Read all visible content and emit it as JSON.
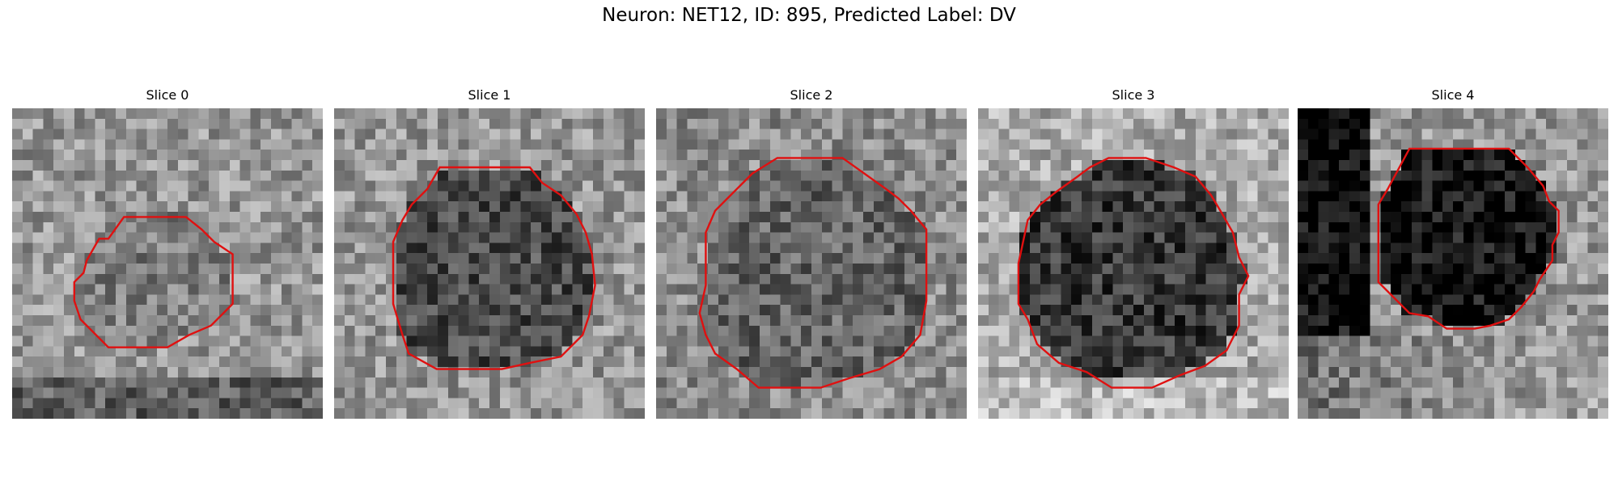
{
  "figure": {
    "title": "Neuron: NET12, ID: 895, Predicted Label: DV"
  },
  "panels": [
    {
      "title": "Slice 0",
      "contour_color": "#e01010",
      "contour": [
        [
          0.36,
          0.35
        ],
        [
          0.56,
          0.35
        ],
        [
          0.61,
          0.39
        ],
        [
          0.65,
          0.43
        ],
        [
          0.71,
          0.47
        ],
        [
          0.71,
          0.63
        ],
        [
          0.64,
          0.7
        ],
        [
          0.57,
          0.73
        ],
        [
          0.5,
          0.77
        ],
        [
          0.41,
          0.77
        ],
        [
          0.31,
          0.77
        ],
        [
          0.22,
          0.68
        ],
        [
          0.2,
          0.62
        ],
        [
          0.2,
          0.56
        ],
        [
          0.23,
          0.53
        ],
        [
          0.24,
          0.49
        ],
        [
          0.28,
          0.42
        ],
        [
          0.31,
          0.42
        ]
      ]
    },
    {
      "title": "Slice 1",
      "contour_color": "#e01010",
      "contour": [
        [
          0.34,
          0.19
        ],
        [
          0.63,
          0.19
        ],
        [
          0.67,
          0.24
        ],
        [
          0.73,
          0.28
        ],
        [
          0.78,
          0.34
        ],
        [
          0.81,
          0.4
        ],
        [
          0.83,
          0.47
        ],
        [
          0.84,
          0.57
        ],
        [
          0.82,
          0.67
        ],
        [
          0.8,
          0.73
        ],
        [
          0.73,
          0.8
        ],
        [
          0.63,
          0.82
        ],
        [
          0.54,
          0.84
        ],
        [
          0.33,
          0.84
        ],
        [
          0.24,
          0.79
        ],
        [
          0.22,
          0.73
        ],
        [
          0.19,
          0.63
        ],
        [
          0.19,
          0.43
        ],
        [
          0.22,
          0.36
        ],
        [
          0.25,
          0.31
        ],
        [
          0.3,
          0.26
        ]
      ]
    },
    {
      "title": "Slice 2",
      "contour_color": "#e01010",
      "contour": [
        [
          0.39,
          0.16
        ],
        [
          0.6,
          0.16
        ],
        [
          0.67,
          0.21
        ],
        [
          0.74,
          0.26
        ],
        [
          0.78,
          0.29
        ],
        [
          0.82,
          0.33
        ],
        [
          0.87,
          0.39
        ],
        [
          0.87,
          0.62
        ],
        [
          0.85,
          0.73
        ],
        [
          0.79,
          0.8
        ],
        [
          0.72,
          0.84
        ],
        [
          0.62,
          0.87
        ],
        [
          0.53,
          0.9
        ],
        [
          0.33,
          0.9
        ],
        [
          0.26,
          0.84
        ],
        [
          0.19,
          0.79
        ],
        [
          0.16,
          0.73
        ],
        [
          0.14,
          0.66
        ],
        [
          0.16,
          0.57
        ],
        [
          0.16,
          0.4
        ],
        [
          0.19,
          0.33
        ],
        [
          0.26,
          0.26
        ],
        [
          0.31,
          0.21
        ]
      ]
    },
    {
      "title": "Slice 3",
      "contour_color": "#e01010",
      "contour": [
        [
          0.42,
          0.16
        ],
        [
          0.54,
          0.16
        ],
        [
          0.63,
          0.19
        ],
        [
          0.7,
          0.22
        ],
        [
          0.75,
          0.28
        ],
        [
          0.78,
          0.33
        ],
        [
          0.82,
          0.4
        ],
        [
          0.84,
          0.48
        ],
        [
          0.87,
          0.54
        ],
        [
          0.84,
          0.6
        ],
        [
          0.84,
          0.7
        ],
        [
          0.8,
          0.78
        ],
        [
          0.73,
          0.83
        ],
        [
          0.65,
          0.86
        ],
        [
          0.56,
          0.9
        ],
        [
          0.43,
          0.9
        ],
        [
          0.35,
          0.85
        ],
        [
          0.26,
          0.82
        ],
        [
          0.19,
          0.76
        ],
        [
          0.16,
          0.68
        ],
        [
          0.13,
          0.63
        ],
        [
          0.13,
          0.5
        ],
        [
          0.16,
          0.36
        ],
        [
          0.2,
          0.31
        ],
        [
          0.25,
          0.27
        ],
        [
          0.32,
          0.22
        ],
        [
          0.36,
          0.19
        ]
      ]
    },
    {
      "title": "Slice 4",
      "contour_color": "#e01010",
      "contour": [
        [
          0.36,
          0.13
        ],
        [
          0.68,
          0.13
        ],
        [
          0.74,
          0.19
        ],
        [
          0.79,
          0.25
        ],
        [
          0.81,
          0.3
        ],
        [
          0.84,
          0.33
        ],
        [
          0.84,
          0.4
        ],
        [
          0.82,
          0.44
        ],
        [
          0.82,
          0.49
        ],
        [
          0.78,
          0.55
        ],
        [
          0.76,
          0.59
        ],
        [
          0.72,
          0.64
        ],
        [
          0.68,
          0.68
        ],
        [
          0.62,
          0.7
        ],
        [
          0.57,
          0.71
        ],
        [
          0.48,
          0.71
        ],
        [
          0.42,
          0.67
        ],
        [
          0.36,
          0.66
        ],
        [
          0.3,
          0.6
        ],
        [
          0.26,
          0.56
        ],
        [
          0.26,
          0.31
        ],
        [
          0.29,
          0.26
        ]
      ]
    }
  ]
}
